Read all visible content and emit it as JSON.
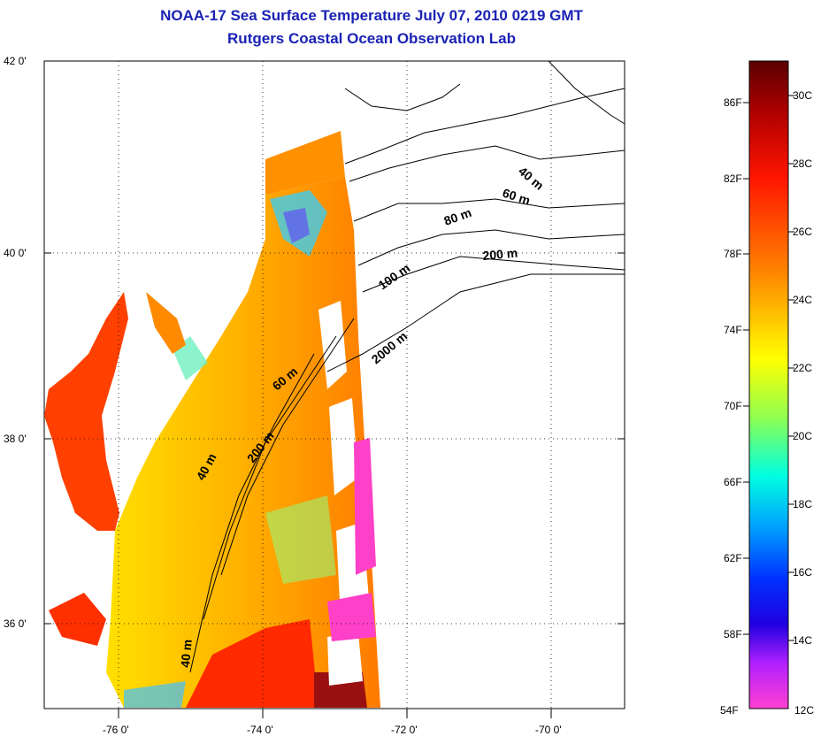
{
  "title": {
    "line1": "NOAA-17 Sea Surface Temperature July 07, 2010 0219 GMT",
    "line2": "Rutgers Coastal Ocean Observation Lab"
  },
  "map": {
    "lat_labels": [
      "42 0'",
      "40 0'",
      "38 0'",
      "36 0'"
    ],
    "lon_labels": [
      "-76 0'",
      "-74 0'",
      "-72 0'",
      "-70 0'"
    ],
    "contour_labels": [
      "40 m",
      "60 m",
      "80 m",
      "200 m",
      "100 m",
      "2000 m",
      "60 m",
      "200 m",
      "40 m",
      "40 m"
    ],
    "grid": "dotted"
  },
  "colorbar": {
    "fahrenheit_labels": [
      "86F",
      "82F",
      "78F",
      "74F",
      "70F",
      "66F",
      "62F",
      "58F",
      "54F"
    ],
    "celsius_labels": [
      "30C",
      "28C",
      "26C",
      "24C",
      "22C",
      "20C",
      "18C",
      "16C",
      "14C",
      "12C"
    ],
    "colors": [
      "#7a0000",
      "#c00000",
      "#ff1a00",
      "#ff7a00",
      "#ffc000",
      "#ffff00",
      "#a0ff40",
      "#00ffd0",
      "#00b0ff",
      "#0040ff",
      "#0000ff",
      "#7a20ff",
      "#ff40d0"
    ]
  }
}
